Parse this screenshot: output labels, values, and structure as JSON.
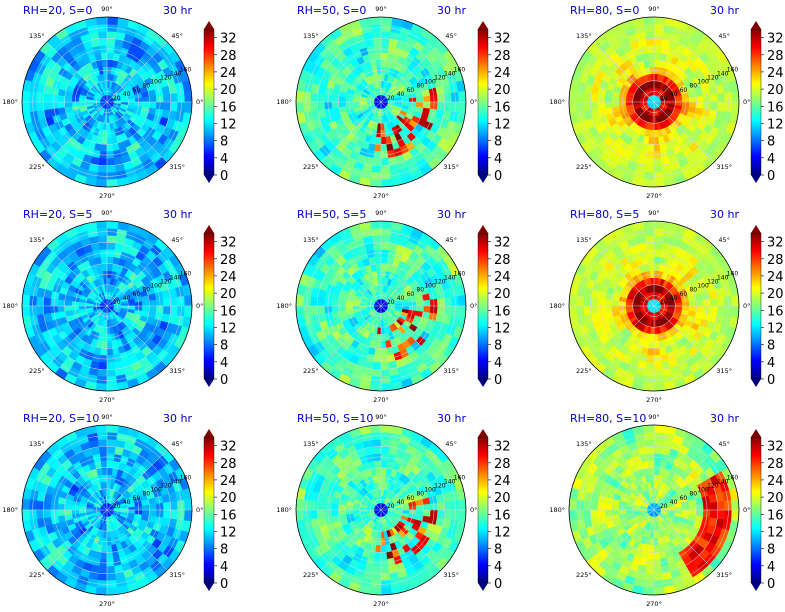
{
  "figure": {
    "colormap": "jet",
    "colorbar_ticks": [
      "0",
      "4",
      "8",
      "12",
      "16",
      "20",
      "24",
      "28",
      "32"
    ],
    "angle_labels": [
      "90°",
      "45°",
      "0°",
      "315°",
      "270°",
      "225°",
      "180°",
      "135°"
    ],
    "radial_labels": [
      "20",
      "40",
      "60",
      "80",
      "100",
      "120",
      "140",
      "160"
    ],
    "time_label": "30 hr"
  },
  "chart_data": [
    {
      "type": "heatmap",
      "projection": "polar",
      "title": "RH=20, S=0",
      "time": "30 hr",
      "colorbar_range": [
        0,
        34
      ],
      "pattern": "low",
      "field_level_approx": 12
    },
    {
      "type": "heatmap",
      "projection": "polar",
      "title": "RH=50, S=0",
      "time": "30 hr",
      "colorbar_range": [
        0,
        34
      ],
      "pattern": "mid",
      "field_level_approx": 15
    },
    {
      "type": "heatmap",
      "projection": "polar",
      "title": "RH=80, S=0",
      "time": "30 hr",
      "colorbar_range": [
        0,
        34
      ],
      "pattern": "ring",
      "field_level_approx": 20,
      "core_max_approx": 34
    },
    {
      "type": "heatmap",
      "projection": "polar",
      "title": "RH=20, S=5",
      "time": "30 hr",
      "colorbar_range": [
        0,
        34
      ],
      "pattern": "low",
      "field_level_approx": 12
    },
    {
      "type": "heatmap",
      "projection": "polar",
      "title": "RH=50, S=5",
      "time": "30 hr",
      "colorbar_range": [
        0,
        34
      ],
      "pattern": "mid",
      "field_level_approx": 15
    },
    {
      "type": "heatmap",
      "projection": "polar",
      "title": "RH=80, S=5",
      "time": "30 hr",
      "colorbar_range": [
        0,
        34
      ],
      "pattern": "ring",
      "field_level_approx": 20,
      "core_max_approx": 34
    },
    {
      "type": "heatmap",
      "projection": "polar",
      "title": "RH=20, S=10",
      "time": "30 hr",
      "colorbar_range": [
        0,
        34
      ],
      "pattern": "low",
      "field_level_approx": 12
    },
    {
      "type": "heatmap",
      "projection": "polar",
      "title": "RH=50, S=10",
      "time": "30 hr",
      "colorbar_range": [
        0,
        34
      ],
      "pattern": "mid",
      "field_level_approx": 15
    },
    {
      "type": "heatmap",
      "projection": "polar",
      "title": "RH=80, S=10",
      "time": "30 hr",
      "colorbar_range": [
        0,
        34
      ],
      "pattern": "sheared",
      "field_level_approx": 20,
      "core_max_approx": 30
    }
  ]
}
